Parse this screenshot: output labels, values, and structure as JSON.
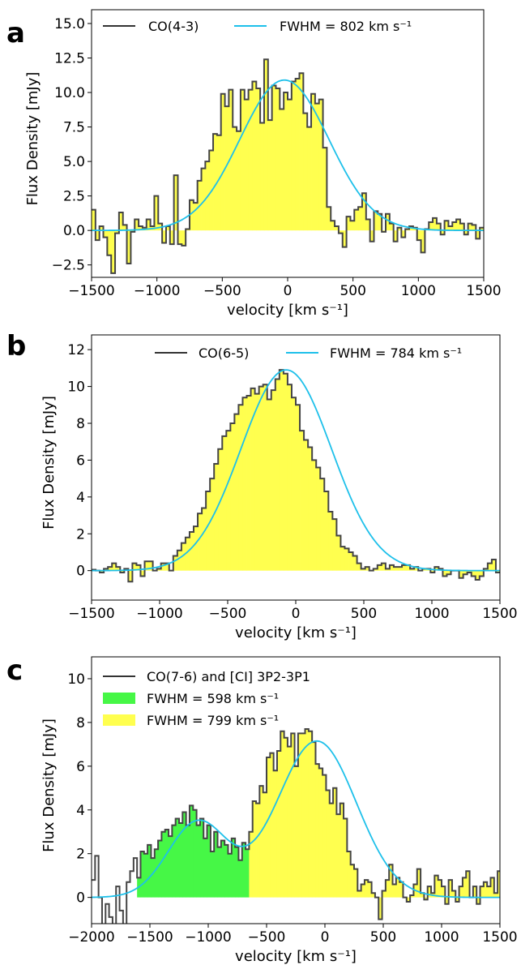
{
  "panels": [
    {
      "letter": "a",
      "chart_data": {
        "type": "area",
        "xlabel": "velocity [km s⁻¹]",
        "ylabel": "Flux Density [mJy]",
        "xlim": [
          -1500,
          1500
        ],
        "ylim": [
          -3.4,
          16.0
        ],
        "xticks": [
          -1500,
          -1000,
          -500,
          0,
          500,
          1000,
          1500
        ],
        "yticks": [
          -2.5,
          0.0,
          2.5,
          5.0,
          7.5,
          10.0,
          12.5,
          15.0
        ],
        "ytick_labels": [
          "−2.5",
          "0.0",
          "2.5",
          "5.0",
          "7.5",
          "10.0",
          "12.5",
          "15.0"
        ],
        "xtick_labels": [
          "−1500",
          "−1000",
          "−500",
          "0",
          "500",
          "1000",
          "1500"
        ],
        "legend": [
          {
            "label": "CO(4-3)",
            "kind": "line",
            "color": "#333333"
          },
          {
            "label": "FWHM = 802 km s⁻¹",
            "kind": "line",
            "color": "#1ec0ea"
          }
        ],
        "legend_position": "top-left",
        "bin_width": 30,
        "x_start": -1500,
        "flux": [
          1.5,
          -0.7,
          0.3,
          -0.5,
          -1.8,
          -3.1,
          -0.2,
          1.3,
          0.4,
          -2.4,
          -0.1,
          0.8,
          0.3,
          0.2,
          0.8,
          0.3,
          2.5,
          0.5,
          -0.9,
          0.3,
          -1.0,
          4.0,
          -1.0,
          -1.1,
          0.1,
          2.2,
          2.0,
          3.6,
          4.5,
          5.0,
          5.8,
          7.0,
          6.9,
          9.9,
          9.0,
          10.2,
          7.5,
          7.2,
          10.2,
          9.5,
          10.2,
          10.8,
          10.3,
          7.8,
          12.4,
          8.0,
          10.5,
          10.3,
          8.8,
          10.0,
          9.5,
          10.8,
          11.0,
          11.4,
          8.5,
          7.5,
          9.9,
          9.2,
          9.5,
          6.0,
          1.7,
          0.7,
          0.3,
          -0.2,
          -1.2,
          1.0,
          0.7,
          1.5,
          1.7,
          2.7,
          0.8,
          -0.8,
          1.4,
          1.2,
          -0.1,
          1.2,
          0.5,
          -0.8,
          0.2,
          -0.5,
          0.1,
          0.3,
          0.2,
          -0.7,
          -1.6,
          0.1,
          0.6,
          0.9,
          0.5,
          -0.3,
          0.7,
          0.3,
          0.6,
          0.8,
          0.5,
          -0.3,
          0.5,
          0.4,
          -0.6,
          0.2
        ],
        "fills": [
          {
            "from": -1500,
            "to": 1500,
            "color": "#ffff4f"
          }
        ],
        "gaussians": [
          {
            "amp": 10.9,
            "center": -25,
            "fwhm": 802,
            "color": "#1ec0ea"
          }
        ]
      }
    },
    {
      "letter": "b",
      "chart_data": {
        "type": "area",
        "xlabel": "velocity [km s⁻¹]",
        "ylabel": "Flux Density [mJy]",
        "xlim": [
          -1500,
          1500
        ],
        "ylim": [
          -1.6,
          12.8
        ],
        "xticks": [
          -1500,
          -1000,
          -500,
          0,
          500,
          1000,
          1500
        ],
        "xtick_labels": [
          "−1500",
          "−1000",
          "−500",
          "0",
          "500",
          "1000",
          "1500"
        ],
        "yticks": [
          0,
          2,
          4,
          6,
          8,
          10,
          12
        ],
        "ytick_labels": [
          "0",
          "2",
          "4",
          "6",
          "8",
          "10",
          "12"
        ],
        "legend": [
          {
            "label": "CO(6-5)",
            "kind": "line",
            "color": "#333333"
          },
          {
            "label": "FWHM = 784 km s⁻¹",
            "kind": "line",
            "color": "#1ec0ea"
          }
        ],
        "legend_position": "top-right",
        "bin_width": 30,
        "x_start": -1500,
        "flux": [
          0.05,
          0.0,
          -0.1,
          0.1,
          0.2,
          0.4,
          0.2,
          -0.1,
          0.1,
          -0.6,
          0.4,
          0.3,
          -0.3,
          0.5,
          0.5,
          0.0,
          0.1,
          0.4,
          0.4,
          0.0,
          0.8,
          1.1,
          1.5,
          1.8,
          2.1,
          2.4,
          3.1,
          3.4,
          4.3,
          5.0,
          5.8,
          6.6,
          7.3,
          7.6,
          8.0,
          8.5,
          9.0,
          9.4,
          9.5,
          9.9,
          9.6,
          10.0,
          10.1,
          9.3,
          9.8,
          10.4,
          10.9,
          10.7,
          10.1,
          9.4,
          9.0,
          7.6,
          7.1,
          6.7,
          6.0,
          5.6,
          5.0,
          4.3,
          3.2,
          2.8,
          1.9,
          1.3,
          1.2,
          1.0,
          0.8,
          0.4,
          0.1,
          0.2,
          0.0,
          0.1,
          0.3,
          0.4,
          0.1,
          0.3,
          0.2,
          0.2,
          0.3,
          0.3,
          0.1,
          0.2,
          0.0,
          0.1,
          0.1,
          -0.1,
          0.2,
          0.1,
          -0.3,
          -0.2,
          0.0,
          0.0,
          -0.4,
          -0.2,
          -0.1,
          -0.3,
          -0.5,
          -0.3,
          0.1,
          0.4,
          0.6,
          -0.1
        ],
        "fills": [
          {
            "from": -1500,
            "to": 1500,
            "color": "#ffff4f"
          }
        ],
        "gaussians": [
          {
            "amp": 10.9,
            "center": -70,
            "fwhm": 784,
            "color": "#1ec0ea"
          }
        ]
      }
    },
    {
      "letter": "c",
      "chart_data": {
        "type": "area",
        "xlabel": "velocity [km s⁻¹]",
        "ylabel": "Flux Density [mJy]",
        "xlim": [
          -2000,
          1500
        ],
        "ylim": [
          -1.2,
          11.0
        ],
        "xticks": [
          -2000,
          -1500,
          -1000,
          -500,
          0,
          500,
          1000,
          1500
        ],
        "xtick_labels": [
          "−2000",
          "−1500",
          "−1000",
          "−500",
          "0",
          "500",
          "1000",
          "1500"
        ],
        "yticks": [
          0,
          2,
          4,
          6,
          8,
          10
        ],
        "ytick_labels": [
          "0",
          "2",
          "4",
          "6",
          "8",
          "10"
        ],
        "legend": [
          {
            "label": "CO(7-6) and [CI] 3P2-3P1",
            "kind": "line",
            "color": "#333333"
          },
          {
            "label": "FWHM = 598 km s⁻¹",
            "kind": "patch",
            "color": "#46f746"
          },
          {
            "label": "FWHM = 799 km s⁻¹",
            "kind": "patch",
            "color": "#ffff4f"
          }
        ],
        "legend_position": "top-left",
        "bin_width": 30,
        "x_start": -2000,
        "flux": [
          0.8,
          1.9,
          0.0,
          -1.4,
          -0.3,
          -0.9,
          -1.3,
          0.5,
          -0.6,
          -1.3,
          0.7,
          1.2,
          1.8,
          0.9,
          2.1,
          2.0,
          2.4,
          1.8,
          2.2,
          2.6,
          3.0,
          3.1,
          2.8,
          3.3,
          3.6,
          3.4,
          3.9,
          3.3,
          4.2,
          4.0,
          3.3,
          3.6,
          2.7,
          3.3,
          2.1,
          3.0,
          2.3,
          2.6,
          2.4,
          2.0,
          2.7,
          2.3,
          1.7,
          2.5,
          2.2,
          3.0,
          4.4,
          4.3,
          5.1,
          4.8,
          6.4,
          6.6,
          5.8,
          6.7,
          7.6,
          7.3,
          6.9,
          7.5,
          6.0,
          7.5,
          7.5,
          7.7,
          7.6,
          7.1,
          6.1,
          5.9,
          5.6,
          4.9,
          4.3,
          5.0,
          3.8,
          4.3,
          3.6,
          2.1,
          1.5,
          1.3,
          0.3,
          0.6,
          0.8,
          0.7,
          0.2,
          0.0,
          -1.0,
          0.3,
          0.8,
          1.5,
          0.6,
          0.9,
          0.7,
          0.0,
          -0.2,
          0.1,
          0.6,
          1.3,
          0.2,
          -0.1,
          0.5,
          0.2,
          1.0,
          0.8,
          0.5,
          -0.3,
          0.8,
          0.3,
          -0.2,
          0.5,
          0.9,
          1.2,
          0.0,
          0.5,
          -0.3,
          0.5,
          0.7,
          0.5,
          0.9,
          0.2,
          1.2
        ],
        "fills": [
          {
            "from": -1600,
            "to": -660,
            "color": "#46f746"
          },
          {
            "from": -660,
            "to": 1500,
            "color": "#ffff4f"
          }
        ],
        "gaussians": [
          {
            "amp": 3.45,
            "center": -1090,
            "fwhm": 598,
            "color": "#1ec0ea",
            "sum": true
          },
          {
            "amp": 7.15,
            "center": -70,
            "fwhm": 799,
            "color": "#1ec0ea",
            "sum": true
          }
        ]
      }
    }
  ]
}
